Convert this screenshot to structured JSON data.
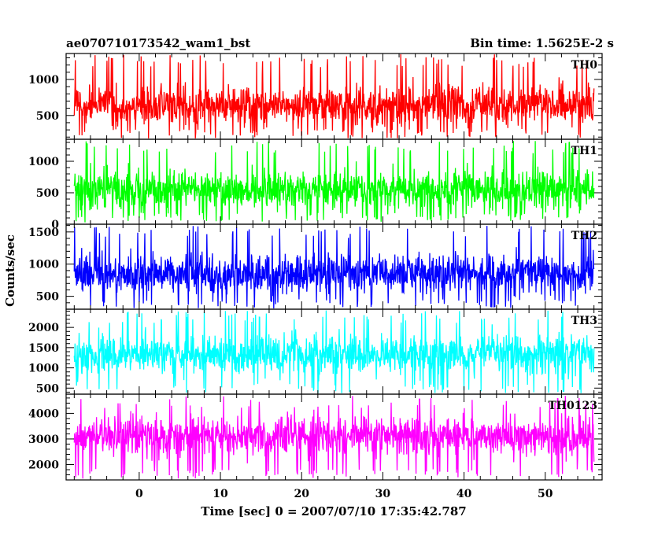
{
  "chart_data": {
    "type": "line",
    "title_left": "ae070710173542_wam1_bst",
    "title_right": "Bin time: 1.5625E-2 s",
    "xlabel": "Time [sec] 0 = 2007/07/10 17:35:42.787",
    "ylabel": "Counts/sec",
    "xlim": [
      -9,
      57
    ],
    "data_x_range": [
      -8,
      56
    ],
    "x_ticks": [
      0,
      10,
      20,
      30,
      40,
      50
    ],
    "x_tick_labels": [
      "0",
      "10",
      "20",
      "30",
      "40",
      "50"
    ],
    "grid": false,
    "panels": [
      {
        "label": "TH0",
        "color": "#ff0000",
        "ylim": [
          170,
          1360
        ],
        "y_ticks": [
          500,
          1000
        ],
        "y_tick_labels": [
          "500",
          "1000"
        ],
        "series_stats": {
          "mean": 640,
          "min": 180,
          "max": 1350
        }
      },
      {
        "label": "TH1",
        "color": "#00ff00",
        "ylim": [
          0,
          1350
        ],
        "y_ticks": [
          0,
          500,
          1000
        ],
        "y_tick_labels": [
          "0",
          "500",
          "1000"
        ],
        "series_stats": {
          "mean": 560,
          "min": 30,
          "max": 1330
        }
      },
      {
        "label": "TH2",
        "color": "#0000ff",
        "ylim": [
          300,
          1620
        ],
        "y_ticks": [
          500,
          1000,
          1500
        ],
        "y_tick_labels": [
          "500",
          "1000",
          "1500"
        ],
        "series_stats": {
          "mean": 860,
          "min": 310,
          "max": 1600
        }
      },
      {
        "label": "TH3",
        "color": "#00ffff",
        "ylim": [
          350,
          2450
        ],
        "y_ticks": [
          500,
          1000,
          1500,
          2000
        ],
        "y_tick_labels": [
          "500",
          "1000",
          "1500",
          "2000"
        ],
        "series_stats": {
          "mean": 1330,
          "min": 370,
          "max": 2430
        }
      },
      {
        "label": "TH0123",
        "color": "#ff00ff",
        "ylim": [
          1400,
          4750
        ],
        "y_ticks": [
          2000,
          3000,
          4000
        ],
        "y_tick_labels": [
          "2000",
          "3000",
          "4000"
        ],
        "series_stats": {
          "mean": 3100,
          "min": 1450,
          "max": 4700
        }
      }
    ]
  }
}
